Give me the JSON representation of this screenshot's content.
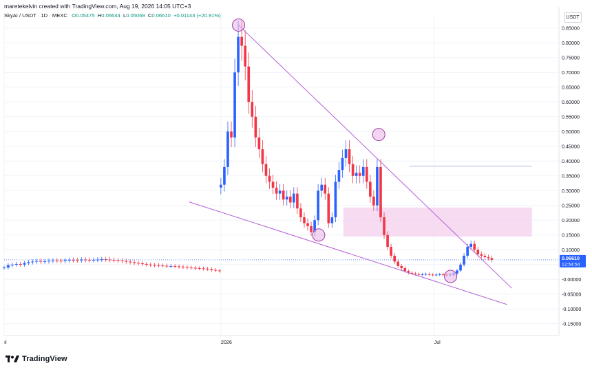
{
  "header": {
    "attribution": "maretekelvin created with TradingView.com, Aug 19, 2026 14:05 UTC+3"
  },
  "legend": {
    "symbol": "SkyAI / USDT · 1D · MEXC",
    "open_label": "O",
    "open": "0.05475",
    "high_label": "H",
    "high": "0.06644",
    "low_label": "L",
    "low": "0.05069",
    "close_label": "C",
    "close": "0.06610",
    "change": "+0.01143 (+20.91%)"
  },
  "currency_button": "USDT",
  "brand": {
    "name": "TradingView"
  },
  "colors": {
    "up": "#2962ff",
    "down": "#f23645",
    "trendline": "#b45fd6",
    "circle_fill": "#e6b3e6",
    "zone_fill": "#f5d5ef",
    "resistance": "#aab4e6"
  },
  "chart_data": {
    "type": "candlestick",
    "title": "",
    "y_unit": "USDT",
    "ylim": [
      -0.19,
      0.875
    ],
    "y_ticks": [
      "0.85000",
      "0.80000",
      "0.75000",
      "0.70000",
      "0.65000",
      "0.60000",
      "0.55000",
      "0.50000",
      "0.45000",
      "0.40000",
      "0.35000",
      "0.30000",
      "0.25000",
      "0.20000",
      "0.15000",
      "0.10000",
      "0.05000",
      "-0.00000",
      "-0.05000",
      "-0.10000",
      "-0.15000"
    ],
    "x_ticks": [
      {
        "label": "ıl",
        "date": "2025-07-01"
      },
      {
        "label": "2026",
        "date": "2026-01-01"
      },
      {
        "label": "Jul",
        "date": "2026-07-01"
      }
    ],
    "xlim_dates": [
      "2025-07-01",
      "2026-10-15"
    ],
    "price_label": {
      "value": "0.06610",
      "countdown": "12:54:54"
    },
    "grid": true,
    "series": [
      {
        "segment": "pre-2026 (Jul–Dec 2025)",
        "dates_start": "2025-07-01",
        "close": [
          0.04,
          0.048,
          0.05,
          0.052,
          0.05,
          0.055,
          0.058,
          0.06,
          0.062,
          0.06,
          0.061,
          0.063,
          0.064,
          0.063,
          0.062,
          0.065,
          0.066,
          0.065,
          0.064,
          0.067,
          0.066,
          0.065,
          0.066,
          0.067,
          0.068,
          0.067,
          0.066,
          0.065,
          0.064,
          0.062,
          0.06,
          0.058,
          0.056,
          0.054,
          0.052,
          0.05,
          0.049,
          0.048,
          0.047,
          0.046,
          0.045,
          0.045,
          0.044,
          0.043,
          0.042,
          0.04,
          0.039,
          0.038,
          0.037,
          0.036,
          0.035,
          0.032,
          0.03,
          0.028
        ]
      },
      {
        "segment": "2026",
        "dates_start": "2026-01-01",
        "close": [
          0.32,
          0.38,
          0.5,
          0.48,
          0.7,
          0.82,
          0.79,
          0.72,
          0.6,
          0.55,
          0.48,
          0.44,
          0.39,
          0.35,
          0.33,
          0.31,
          0.29,
          0.3,
          0.27,
          0.28,
          0.26,
          0.29,
          0.24,
          0.21,
          0.19,
          0.18,
          0.16,
          0.2,
          0.3,
          0.32,
          0.29,
          0.19,
          0.21,
          0.33,
          0.37,
          0.41,
          0.44,
          0.39,
          0.35,
          0.36,
          0.35,
          0.38,
          0.33,
          0.28,
          0.25,
          0.38,
          0.21,
          0.15,
          0.11,
          0.08,
          0.06,
          0.045,
          0.038,
          0.028,
          0.022,
          0.02,
          0.018,
          0.016,
          0.017,
          0.018,
          0.016,
          0.015,
          0.016,
          0.017,
          0.016,
          0.015,
          0.016,
          0.02,
          0.03,
          0.05,
          0.08,
          0.11,
          0.12,
          0.1,
          0.085,
          0.08,
          0.075,
          0.072,
          0.066
        ]
      }
    ],
    "annotations": [
      {
        "type": "trendline",
        "from": [
          "2026-01-16",
          0.86
        ],
        "to": [
          "2026-09-05",
          -0.03
        ]
      },
      {
        "type": "trendline",
        "from": [
          "2025-12-05",
          0.262
        ],
        "to": [
          "2026-09-01",
          -0.085
        ]
      },
      {
        "type": "horizontal_segment",
        "value": 0.383,
        "from": "2026-06-10",
        "to": "2026-09-22"
      },
      {
        "type": "zone",
        "y_range": [
          0.145,
          0.243
        ],
        "from": "2026-04-15",
        "to": "2026-09-22"
      },
      {
        "type": "circle",
        "at": [
          "2026-01-16",
          0.86
        ]
      },
      {
        "type": "circle",
        "at": [
          "2026-05-15",
          0.49
        ]
      },
      {
        "type": "circle",
        "at": [
          "2026-03-25",
          0.15
        ]
      },
      {
        "type": "circle",
        "at": [
          "2026-07-15",
          0.01
        ]
      }
    ]
  }
}
